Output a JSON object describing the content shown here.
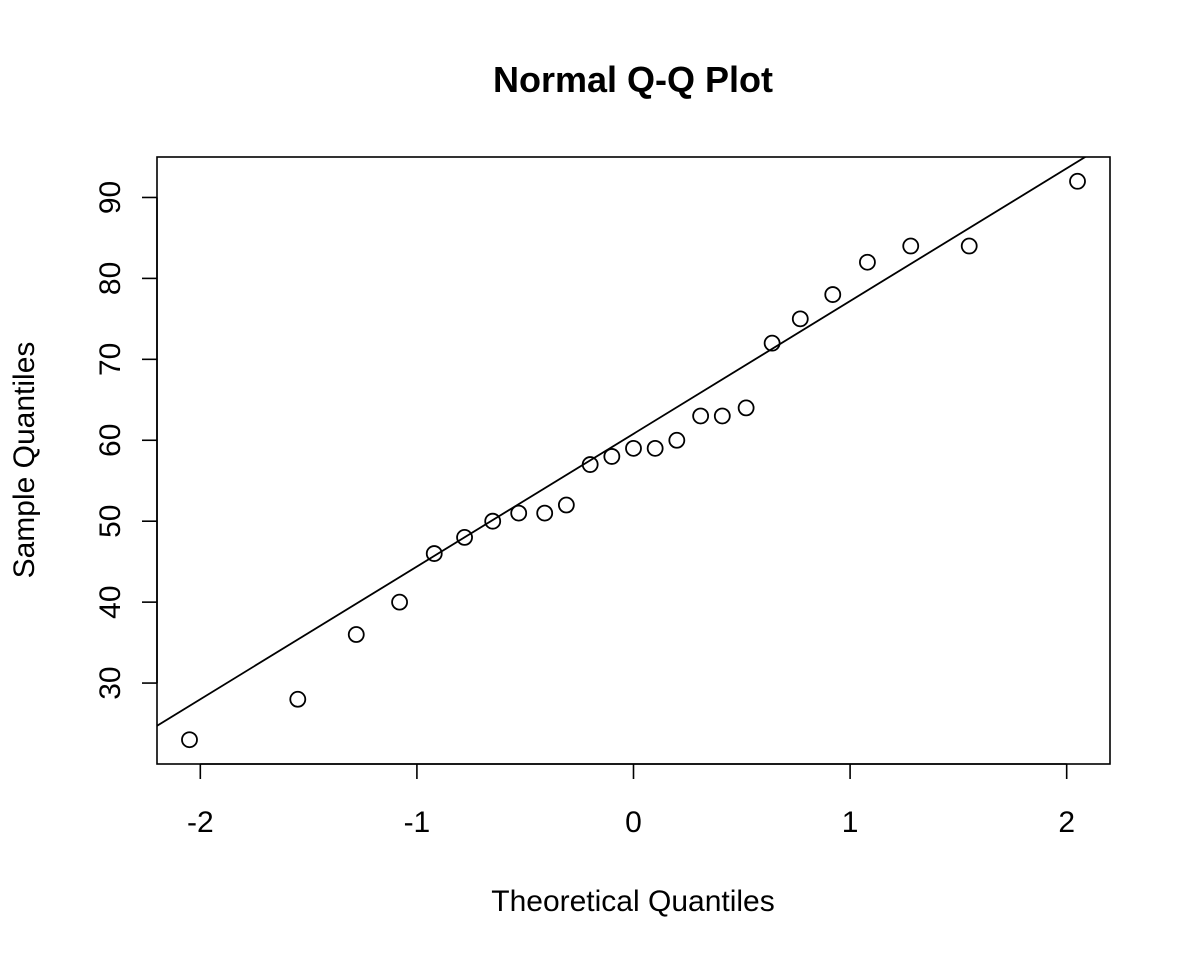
{
  "chart_data": {
    "type": "scatter",
    "title": "Normal Q-Q Plot",
    "xlabel": "Theoretical Quantiles",
    "ylabel": "Sample Quantiles",
    "xlim": [
      -2.2,
      2.2
    ],
    "ylim": [
      20,
      95
    ],
    "x_ticks": [
      -2,
      -1,
      0,
      1,
      2
    ],
    "x_tick_labels": [
      "-2",
      "-1",
      "0",
      "1",
      "2"
    ],
    "y_ticks": [
      30,
      40,
      50,
      60,
      70,
      80,
      90
    ],
    "y_tick_labels": [
      "30",
      "40",
      "50",
      "60",
      "70",
      "80",
      "90"
    ],
    "grid": false,
    "marker": "open-circle",
    "points": {
      "x": [
        -2.05,
        -1.55,
        -1.28,
        -1.08,
        -0.92,
        -0.78,
        -0.65,
        -0.53,
        -0.41,
        -0.31,
        -0.2,
        -0.1,
        0.0,
        0.1,
        0.2,
        0.31,
        0.41,
        0.52,
        0.64,
        0.77,
        0.92,
        1.08,
        1.28,
        1.55,
        2.05
      ],
      "y": [
        23,
        28,
        36,
        40,
        46,
        48,
        50,
        51,
        51,
        52,
        57,
        58,
        59,
        59,
        60,
        63,
        63,
        64,
        72,
        75,
        78,
        82,
        84,
        84,
        92
      ]
    },
    "reference_line": {
      "intercept": 60.8,
      "slope": 16.4
    }
  }
}
